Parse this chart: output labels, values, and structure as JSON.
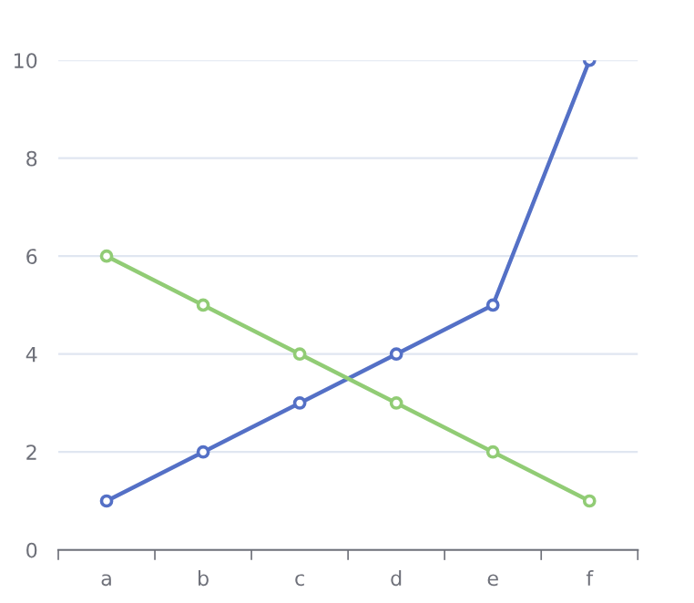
{
  "chart_data": {
    "type": "line",
    "categories": [
      "a",
      "b",
      "c",
      "d",
      "e",
      "f"
    ],
    "series": [
      {
        "color": "#5470c6",
        "values": [
          1,
          2,
          3,
          4,
          5,
          10
        ]
      },
      {
        "color": "#91cc75",
        "values": [
          6,
          5,
          4,
          3,
          2,
          1
        ]
      }
    ],
    "ylim": [
      0,
      10
    ],
    "yticks": [
      0,
      2,
      4,
      6,
      8,
      10
    ],
    "grid": "y",
    "marker": "circle",
    "line_style": "solid"
  }
}
